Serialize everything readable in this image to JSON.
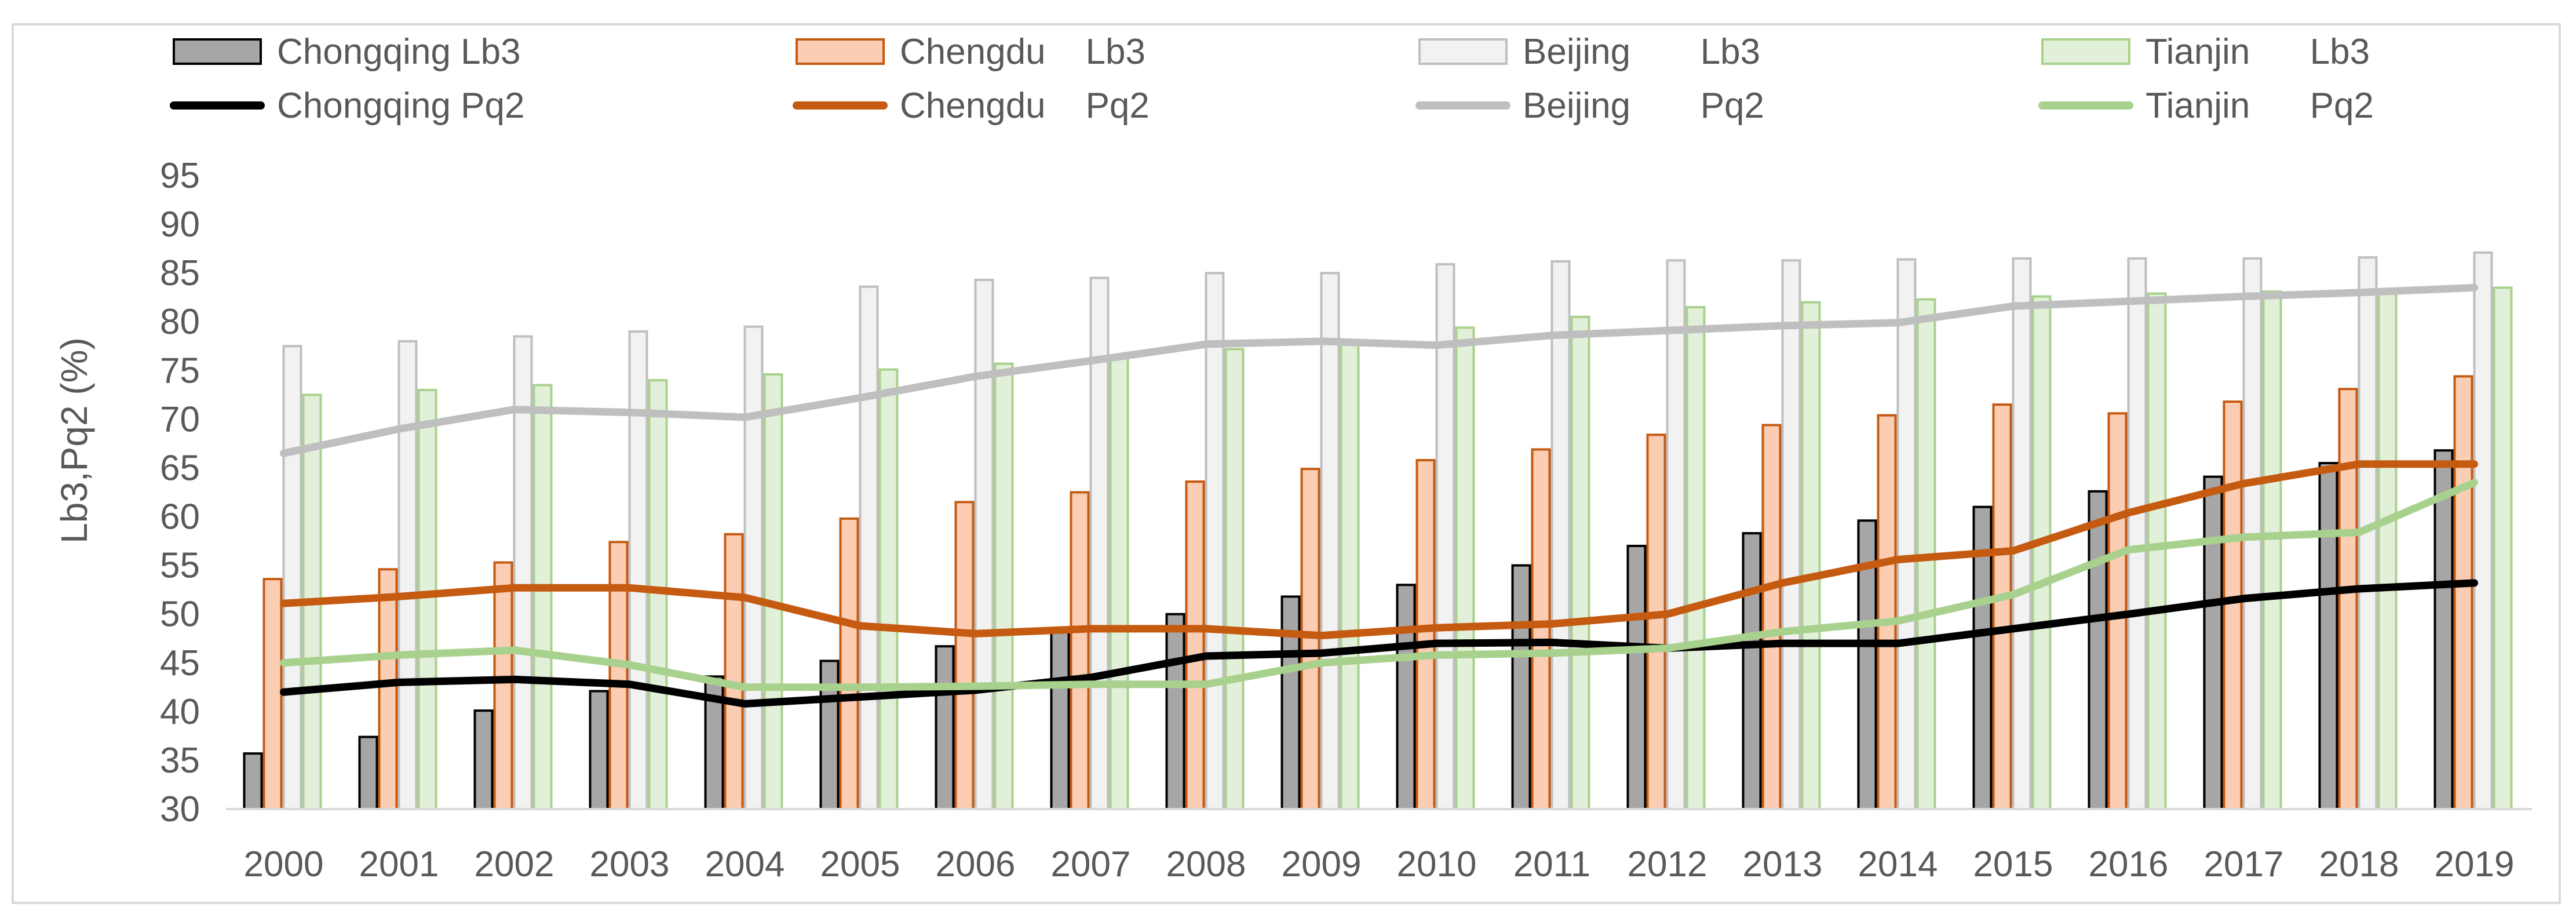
{
  "chart_data": {
    "type": "bar",
    "title": "",
    "xlabel": "",
    "ylabel": "Lb3,Pq2 (%)",
    "ylim": [
      30,
      95
    ],
    "ytick_step": 5,
    "grid": false,
    "legend_position": "top",
    "categories": [
      "2000",
      "2001",
      "2002",
      "2003",
      "2004",
      "2005",
      "2006",
      "2007",
      "2008",
      "2009",
      "2010",
      "2011",
      "2012",
      "2013",
      "2014",
      "2015",
      "2016",
      "2017",
      "2018",
      "2019"
    ],
    "bar_series": [
      {
        "name": "Chongqing",
        "label": "Chongqing Lb3",
        "fill": "#a6a6a6",
        "stroke": "#000000",
        "values": [
          35.7,
          37.4,
          40.1,
          42.1,
          43.6,
          45.2,
          46.7,
          48.3,
          50.0,
          51.8,
          53.0,
          55.0,
          57.0,
          58.3,
          59.6,
          61.0,
          62.6,
          64.1,
          65.5,
          66.8
        ]
      },
      {
        "name": "Chengdu",
        "label": "Chengdu    Lb3",
        "fill": "#fbcdb3",
        "stroke": "#c55a11",
        "values": [
          53.6,
          54.6,
          55.3,
          57.4,
          58.2,
          59.8,
          61.5,
          62.5,
          63.6,
          64.9,
          65.8,
          66.9,
          68.4,
          69.4,
          70.4,
          71.5,
          70.6,
          71.8,
          73.1,
          74.4
        ]
      },
      {
        "name": "Beijing",
        "label": "Beijing       Lb3",
        "fill": "#f2f2f2",
        "stroke": "#bfbfbf",
        "values": [
          77.5,
          78.0,
          78.5,
          79.0,
          79.5,
          83.6,
          84.3,
          84.5,
          85.0,
          85.0,
          85.9,
          86.2,
          86.3,
          86.3,
          86.4,
          86.5,
          86.5,
          86.5,
          86.6,
          87.1
        ]
      },
      {
        "name": "Tianjin",
        "label": "Tianjin      Lb3",
        "fill": "#e2efd9",
        "stroke": "#a9d18e",
        "values": [
          72.5,
          73.0,
          73.5,
          74.0,
          74.6,
          75.1,
          75.7,
          76.3,
          77.2,
          78.0,
          79.4,
          80.5,
          81.5,
          82.0,
          82.3,
          82.6,
          82.9,
          83.1,
          83.3,
          83.5
        ]
      }
    ],
    "line_series": [
      {
        "name": "Chongqing",
        "label": "Chongqing Pq2",
        "color": "#000000",
        "values": [
          42.0,
          43.0,
          43.3,
          42.8,
          40.8,
          41.5,
          42.2,
          43.5,
          45.7,
          46.0,
          47.0,
          47.1,
          46.5,
          47.0,
          47.0,
          48.5,
          50.0,
          51.6,
          52.6,
          53.2
        ]
      },
      {
        "name": "Chengdu",
        "label": "Chengdu    Pq2",
        "color": "#c55a11",
        "values": [
          51.1,
          51.8,
          52.7,
          52.7,
          51.7,
          48.8,
          48.0,
          48.5,
          48.5,
          47.8,
          48.6,
          49.0,
          50.0,
          53.2,
          55.6,
          56.5,
          60.4,
          63.4,
          65.4,
          65.4
        ]
      },
      {
        "name": "Beijing",
        "label": "Beijing       Pq2",
        "color": "#bfbfbf",
        "values": [
          66.5,
          69.0,
          71.0,
          70.7,
          70.2,
          72.2,
          74.4,
          76.0,
          77.7,
          78.0,
          77.6,
          78.6,
          79.1,
          79.6,
          79.9,
          81.6,
          82.1,
          82.6,
          83.0,
          83.5
        ]
      },
      {
        "name": "Tianjin",
        "label": "Tianjin      Pq2",
        "color": "#a9d18e",
        "values": [
          45.0,
          45.8,
          46.3,
          44.8,
          42.5,
          42.5,
          42.6,
          42.8,
          42.8,
          45.0,
          45.8,
          46.0,
          46.5,
          48.2,
          49.3,
          52.0,
          56.6,
          57.9,
          58.4,
          63.5
        ]
      }
    ]
  }
}
